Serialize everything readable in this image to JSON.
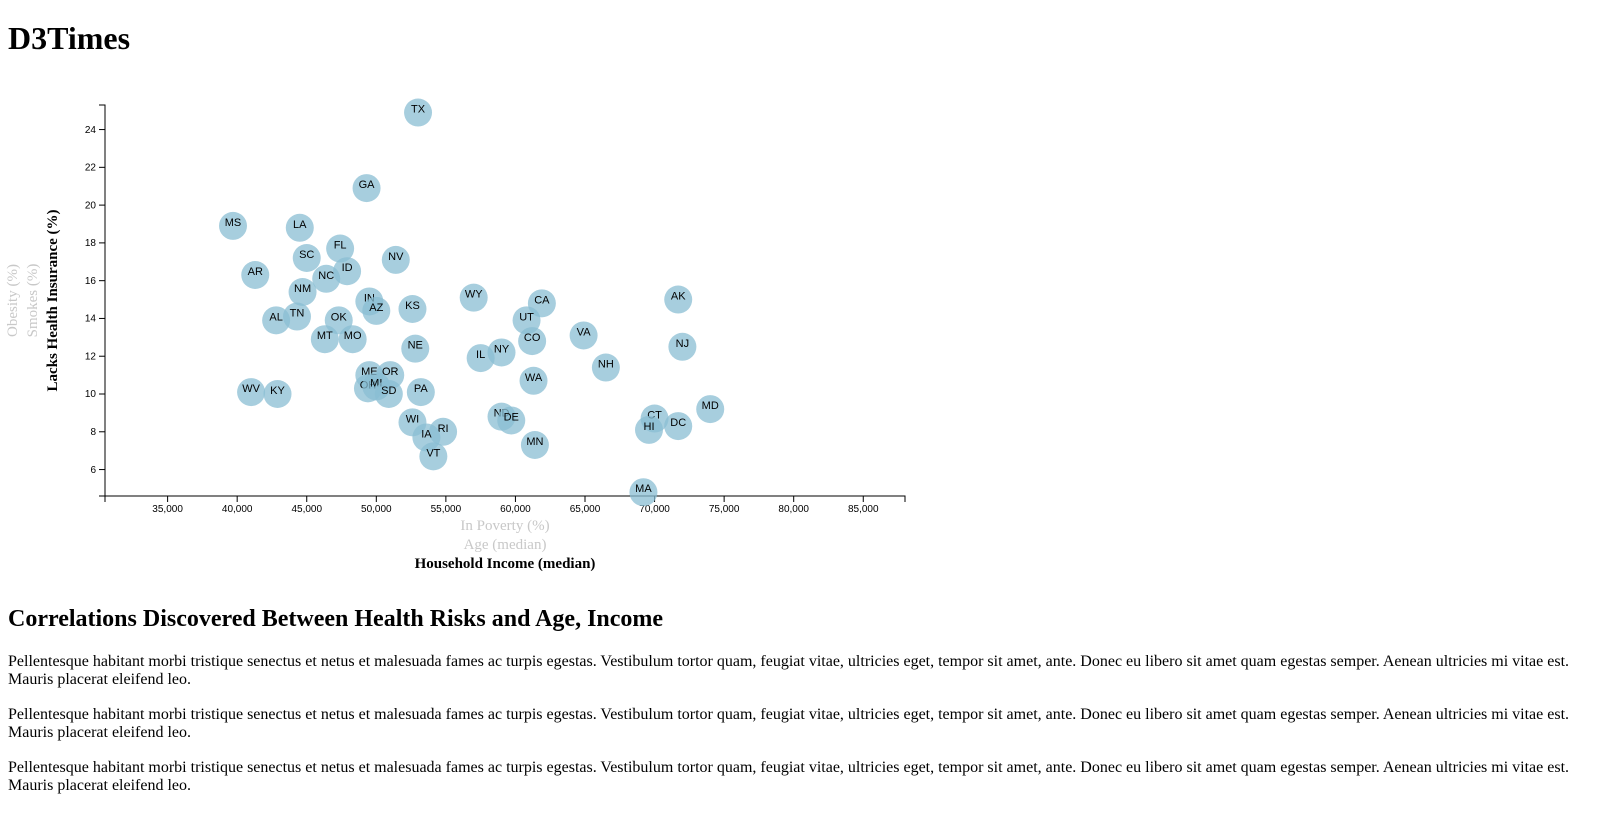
{
  "page": {
    "title": "D3Times"
  },
  "article": {
    "heading": "Correlations Discovered Between Health Risks and Age, Income",
    "paragraphs": [
      "Pellentesque habitant morbi tristique senectus et netus et malesuada fames ac turpis egestas. Vestibulum tortor quam, feugiat vitae, ultricies eget, tempor sit amet, ante. Donec eu libero sit amet quam egestas semper. Aenean ultricies mi vitae est. Mauris placerat eleifend leo.",
      "Pellentesque habitant morbi tristique senectus et netus et malesuada fames ac turpis egestas. Vestibulum tortor quam, feugiat vitae, ultricies eget, tempor sit amet, ante. Donec eu libero sit amet quam egestas semper. Aenean ultricies mi vitae est. Mauris placerat eleifend leo.",
      "Pellentesque habitant morbi tristique senectus et netus et malesuada fames ac turpis egestas. Vestibulum tortor quam, feugiat vitae, ultricies eget, tempor sit amet, ante. Donec eu libero sit amet quam egestas semper. Aenean ultricies mi vitae est. Mauris placerat eleifend leo."
    ]
  },
  "chart_data": {
    "type": "scatter",
    "colors": {
      "marker": "#89bdd3",
      "active_label": "#000000",
      "inactive_label": "#c8c8c8"
    },
    "x_axis_options": [
      {
        "label": "In Poverty (%)",
        "active": false
      },
      {
        "label": "Age (median)",
        "active": false
      },
      {
        "label": "Household Income (median)",
        "active": true
      }
    ],
    "y_axis_options": [
      {
        "label": "Lacks Health Insurance (%)",
        "active": true
      },
      {
        "label": "Smokes (%)",
        "active": false
      },
      {
        "label": "Obesity (%)",
        "active": false
      }
    ],
    "xlim": [
      30500,
      88000
    ],
    "ylim": [
      4.6,
      25.3
    ],
    "x_ticks": [
      35000,
      40000,
      45000,
      50000,
      55000,
      60000,
      65000,
      70000,
      75000,
      80000,
      85000
    ],
    "x_tick_labels": [
      "35,000",
      "40,000",
      "45,000",
      "50,000",
      "55,000",
      "60,000",
      "65,000",
      "70,000",
      "75,000",
      "80,000",
      "85,000"
    ],
    "y_ticks": [
      6,
      8,
      10,
      12,
      14,
      16,
      18,
      20,
      22,
      24
    ],
    "y_tick_labels": [
      "6",
      "8",
      "10",
      "12",
      "14",
      "16",
      "18",
      "20",
      "22",
      "24"
    ],
    "points": [
      {
        "label": "TX",
        "x": 53000,
        "y": 24.9
      },
      {
        "label": "GA",
        "x": 49300,
        "y": 20.9
      },
      {
        "label": "MS",
        "x": 39700,
        "y": 18.9
      },
      {
        "label": "LA",
        "x": 44500,
        "y": 18.8
      },
      {
        "label": "FL",
        "x": 47400,
        "y": 17.7
      },
      {
        "label": "NV",
        "x": 51400,
        "y": 17.1
      },
      {
        "label": "SC",
        "x": 45000,
        "y": 17.2
      },
      {
        "label": "ID",
        "x": 47900,
        "y": 16.5
      },
      {
        "label": "NC",
        "x": 46400,
        "y": 16.1
      },
      {
        "label": "AR",
        "x": 41300,
        "y": 16.3
      },
      {
        "label": "NM",
        "x": 44700,
        "y": 15.4
      },
      {
        "label": "WY",
        "x": 57000,
        "y": 15.1
      },
      {
        "label": "AK",
        "x": 71700,
        "y": 15.0
      },
      {
        "label": "CA",
        "x": 61900,
        "y": 14.8
      },
      {
        "label": "IN",
        "x": 49500,
        "y": 14.9
      },
      {
        "label": "AZ",
        "x": 50000,
        "y": 14.4
      },
      {
        "label": "KS",
        "x": 52600,
        "y": 14.5
      },
      {
        "label": "TN",
        "x": 44300,
        "y": 14.1
      },
      {
        "label": "AL",
        "x": 42800,
        "y": 13.9
      },
      {
        "label": "OK",
        "x": 47300,
        "y": 13.9
      },
      {
        "label": "UT",
        "x": 60800,
        "y": 13.9
      },
      {
        "label": "VA",
        "x": 64900,
        "y": 13.1
      },
      {
        "label": "MT",
        "x": 46300,
        "y": 12.9
      },
      {
        "label": "MO",
        "x": 48300,
        "y": 12.9
      },
      {
        "label": "CO",
        "x": 61200,
        "y": 12.8
      },
      {
        "label": "NE",
        "x": 52800,
        "y": 12.4
      },
      {
        "label": "NY",
        "x": 59000,
        "y": 12.2
      },
      {
        "label": "NJ",
        "x": 72000,
        "y": 12.5
      },
      {
        "label": "IL",
        "x": 57500,
        "y": 11.9
      },
      {
        "label": "NH",
        "x": 66500,
        "y": 11.4
      },
      {
        "label": "ME",
        "x": 49500,
        "y": 11.0
      },
      {
        "label": "OR",
        "x": 51000,
        "y": 11.0
      },
      {
        "label": "WA",
        "x": 61300,
        "y": 10.7
      },
      {
        "label": "OH",
        "x": 49400,
        "y": 10.3
      },
      {
        "label": "MI",
        "x": 50000,
        "y": 10.4
      },
      {
        "label": "SD",
        "x": 50900,
        "y": 10.0
      },
      {
        "label": "PA",
        "x": 53200,
        "y": 10.1
      },
      {
        "label": "WV",
        "x": 41000,
        "y": 10.1
      },
      {
        "label": "KY",
        "x": 42900,
        "y": 10.0
      },
      {
        "label": "MD",
        "x": 74000,
        "y": 9.2
      },
      {
        "label": "CT",
        "x": 70000,
        "y": 8.7
      },
      {
        "label": "ND",
        "x": 59000,
        "y": 8.8
      },
      {
        "label": "DE",
        "x": 59700,
        "y": 8.6
      },
      {
        "label": "WI",
        "x": 52600,
        "y": 8.5
      },
      {
        "label": "DC",
        "x": 71700,
        "y": 8.3
      },
      {
        "label": "HI",
        "x": 69600,
        "y": 8.1
      },
      {
        "label": "RI",
        "x": 54800,
        "y": 8.0
      },
      {
        "label": "IA",
        "x": 53600,
        "y": 7.7
      },
      {
        "label": "MN",
        "x": 61400,
        "y": 7.3
      },
      {
        "label": "VT",
        "x": 54100,
        "y": 6.7
      },
      {
        "label": "MA",
        "x": 69200,
        "y": 4.8
      }
    ]
  }
}
